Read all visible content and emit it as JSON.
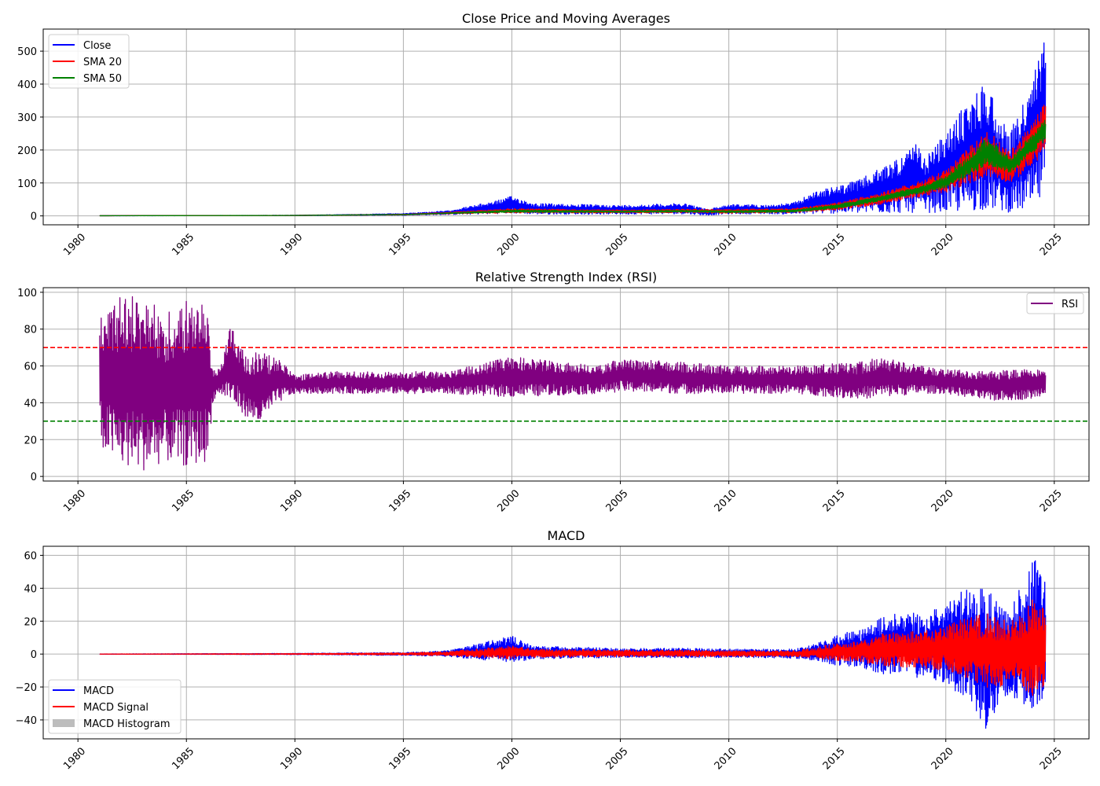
{
  "chart_data": [
    {
      "type": "line",
      "title": "Close Price and Moving Averages",
      "xlabel": "",
      "ylabel": "",
      "xlim": [
        1978.4,
        2026.6
      ],
      "ylim": [
        -27,
        567
      ],
      "xticks": [
        1980,
        1985,
        1990,
        1995,
        2000,
        2005,
        2010,
        2015,
        2020,
        2025
      ],
      "yticks": [
        0,
        100,
        200,
        300,
        400,
        500
      ],
      "grid": true,
      "legend": "upper-left",
      "series": [
        {
          "name": "Close",
          "color": "#0000ff",
          "style": "band",
          "x": [
            1981.0,
            1990.0,
            1995.0,
            1997.0,
            1998.5,
            1999.5,
            2000.0,
            2001.0,
            2005.0,
            2008.0,
            2009.0,
            2010.0,
            2012.0,
            2013.0,
            2014.0,
            2015.0,
            2016.0,
            2017.0,
            2018.0,
            2018.7,
            2019.0,
            2020.0,
            2021.0,
            2021.9,
            2022.5,
            2023.0,
            2023.5,
            2024.0,
            2024.3,
            2024.6
          ],
          "low": [
            0.3,
            0.8,
            2,
            4,
            5,
            7,
            8,
            5,
            5,
            6,
            2,
            6,
            6,
            5,
            6,
            8,
            8,
            9,
            9,
            10,
            10,
            10,
            12,
            20,
            15,
            10,
            15,
            20,
            30,
            100
          ],
          "high": [
            0.8,
            2,
            7,
            15,
            35,
            50,
            60,
            38,
            32,
            38,
            20,
            35,
            33,
            40,
            75,
            90,
            110,
            145,
            185,
            220,
            175,
            250,
            350,
            415,
            300,
            260,
            340,
            400,
            525,
            540
          ]
        },
        {
          "name": "SMA 20",
          "color": "#ff0000",
          "style": "band",
          "x": [
            1981.0,
            1990.0,
            1995.0,
            1997.0,
            2000.0,
            2005.0,
            2008.0,
            2010.0,
            2013.0,
            2015.0,
            2017.0,
            2019.0,
            2020.0,
            2021.9,
            2023.0,
            2024.0,
            2024.6
          ],
          "low": [
            0.4,
            1.2,
            3,
            6,
            9,
            9,
            10,
            8,
            10,
            18,
            35,
            60,
            70,
            120,
            100,
            150,
            200
          ],
          "high": [
            0.7,
            1.7,
            5,
            11,
            22,
            18,
            20,
            20,
            22,
            40,
            70,
            110,
            140,
            260,
            200,
            280,
            355
          ]
        },
        {
          "name": "SMA 50",
          "color": "#008000",
          "style": "band",
          "x": [
            1981.0,
            1990.0,
            1995.0,
            1997.0,
            2000.0,
            2005.0,
            2008.0,
            2010.0,
            2013.0,
            2015.0,
            2017.0,
            2019.0,
            2020.0,
            2021.9,
            2023.0,
            2024.0,
            2024.6
          ],
          "low": [
            0.45,
            1.3,
            3.5,
            7,
            11,
            11,
            12,
            10,
            12,
            22,
            45,
            70,
            85,
            150,
            130,
            190,
            230
          ],
          "high": [
            0.65,
            1.6,
            4.5,
            9,
            18,
            15,
            17,
            16,
            18,
            35,
            60,
            95,
            120,
            240,
            175,
            250,
            300
          ]
        }
      ]
    },
    {
      "type": "line",
      "title": "Relative Strength Index (RSI)",
      "xlabel": "",
      "ylabel": "",
      "xlim": [
        1978.4,
        2026.6
      ],
      "ylim": [
        -2.5,
        102.5
      ],
      "xticks": [
        1980,
        1985,
        1990,
        1995,
        2000,
        2005,
        2010,
        2015,
        2020,
        2025
      ],
      "yticks": [
        0,
        20,
        40,
        60,
        80,
        100
      ],
      "grid": true,
      "legend": "upper-right",
      "hlines": [
        {
          "y": 70,
          "color": "#ff0000",
          "style": "dashed"
        },
        {
          "y": 30,
          "color": "#008000",
          "style": "dashed"
        }
      ],
      "series": [
        {
          "name": "RSI",
          "color": "#800080",
          "style": "band",
          "x": [
            1981.0,
            1982.0,
            1983.0,
            1984.0,
            1985.0,
            1986.0,
            1986.2,
            1986.5,
            1987.0,
            1987.5,
            1988.0,
            1988.5,
            1989.0,
            1989.5,
            1990.0,
            1992.0,
            1995.0,
            1997.0,
            2000.0,
            2004.0,
            2005.0,
            2008.0,
            2010.0,
            2013.0,
            2016.0,
            2017.0,
            2019.0,
            2020.0,
            2022.0,
            2024.0,
            2024.6
          ],
          "low": [
            15,
            5,
            3,
            8,
            5,
            8,
            40,
            45,
            40,
            35,
            30,
            28,
            38,
            42,
            45,
            45,
            45,
            45,
            43,
            45,
            46,
            45,
            45,
            45,
            42,
            43,
            45,
            45,
            41,
            42,
            45
          ],
          "high": [
            92,
            98,
            99,
            90,
            96,
            96,
            60,
            58,
            85,
            70,
            67,
            68,
            65,
            62,
            55,
            57,
            57,
            57,
            65,
            60,
            64,
            62,
            60,
            60,
            62,
            65,
            60,
            58,
            57,
            59,
            59
          ]
        }
      ]
    },
    {
      "type": "line",
      "title": "MACD",
      "xlabel": "",
      "ylabel": "",
      "xlim": [
        1978.4,
        2026.6
      ],
      "ylim": [
        -51.5,
        65.5
      ],
      "xticks": [
        1980,
        1985,
        1990,
        1995,
        2000,
        2005,
        2010,
        2015,
        2020,
        2025
      ],
      "yticks": [
        -40,
        -20,
        0,
        20,
        40,
        60
      ],
      "grid": true,
      "legend": "lower-left",
      "series": [
        {
          "name": "MACD",
          "color": "#0000ff",
          "style": "band",
          "x": [
            1981.0,
            1990.0,
            1995.0,
            1997.0,
            2000.0,
            2001.0,
            2005.0,
            2008.0,
            2010.0,
            2013.0,
            2014.0,
            2015.0,
            2016.0,
            2017.0,
            2018.0,
            2019.0,
            2020.0,
            2021.0,
            2021.9,
            2022.5,
            2023.0,
            2023.5,
            2024.0,
            2024.3,
            2024.6
          ],
          "low": [
            -0.1,
            -0.3,
            -0.8,
            -1.5,
            -5,
            -3,
            -2,
            -2.5,
            -2,
            -2.5,
            -4,
            -7,
            -8,
            -12,
            -13,
            -15,
            -18,
            -28,
            -47,
            -35,
            -30,
            -30,
            -35,
            -30,
            -25
          ],
          "high": [
            0.1,
            0.4,
            1,
            2,
            11,
            5,
            3.5,
            3.5,
            3,
            3,
            6,
            12,
            15,
            22,
            26,
            25,
            32,
            40,
            40,
            35,
            30,
            42,
            60,
            53,
            45
          ]
        },
        {
          "name": "MACD Signal",
          "color": "#ff0000",
          "style": "band",
          "x": [
            1981.0,
            1990.0,
            1995.0,
            1997.0,
            2000.0,
            2001.0,
            2005.0,
            2008.0,
            2010.0,
            2013.0,
            2014.0,
            2015.0,
            2016.0,
            2017.0,
            2018.0,
            2019.0,
            2020.0,
            2021.0,
            2021.9,
            2022.5,
            2023.0,
            2023.5,
            2024.0,
            2024.3,
            2024.6
          ],
          "low": [
            -0.05,
            -0.2,
            -0.5,
            -1,
            -3,
            -2,
            -1.5,
            -1.5,
            -1.5,
            -1.5,
            -2.5,
            -4,
            -5,
            -7,
            -8,
            -9,
            -10,
            -15,
            -22,
            -20,
            -18,
            -20,
            -28,
            -25,
            -20
          ],
          "high": [
            0.05,
            0.3,
            0.7,
            1.5,
            5,
            3,
            2.5,
            2.5,
            2,
            2,
            4,
            7,
            8,
            12,
            14,
            14,
            18,
            22,
            25,
            22,
            20,
            25,
            35,
            30,
            28
          ]
        },
        {
          "name": "MACD Histogram",
          "color": "#bdbdbd",
          "style": "patch"
        }
      ]
    }
  ]
}
